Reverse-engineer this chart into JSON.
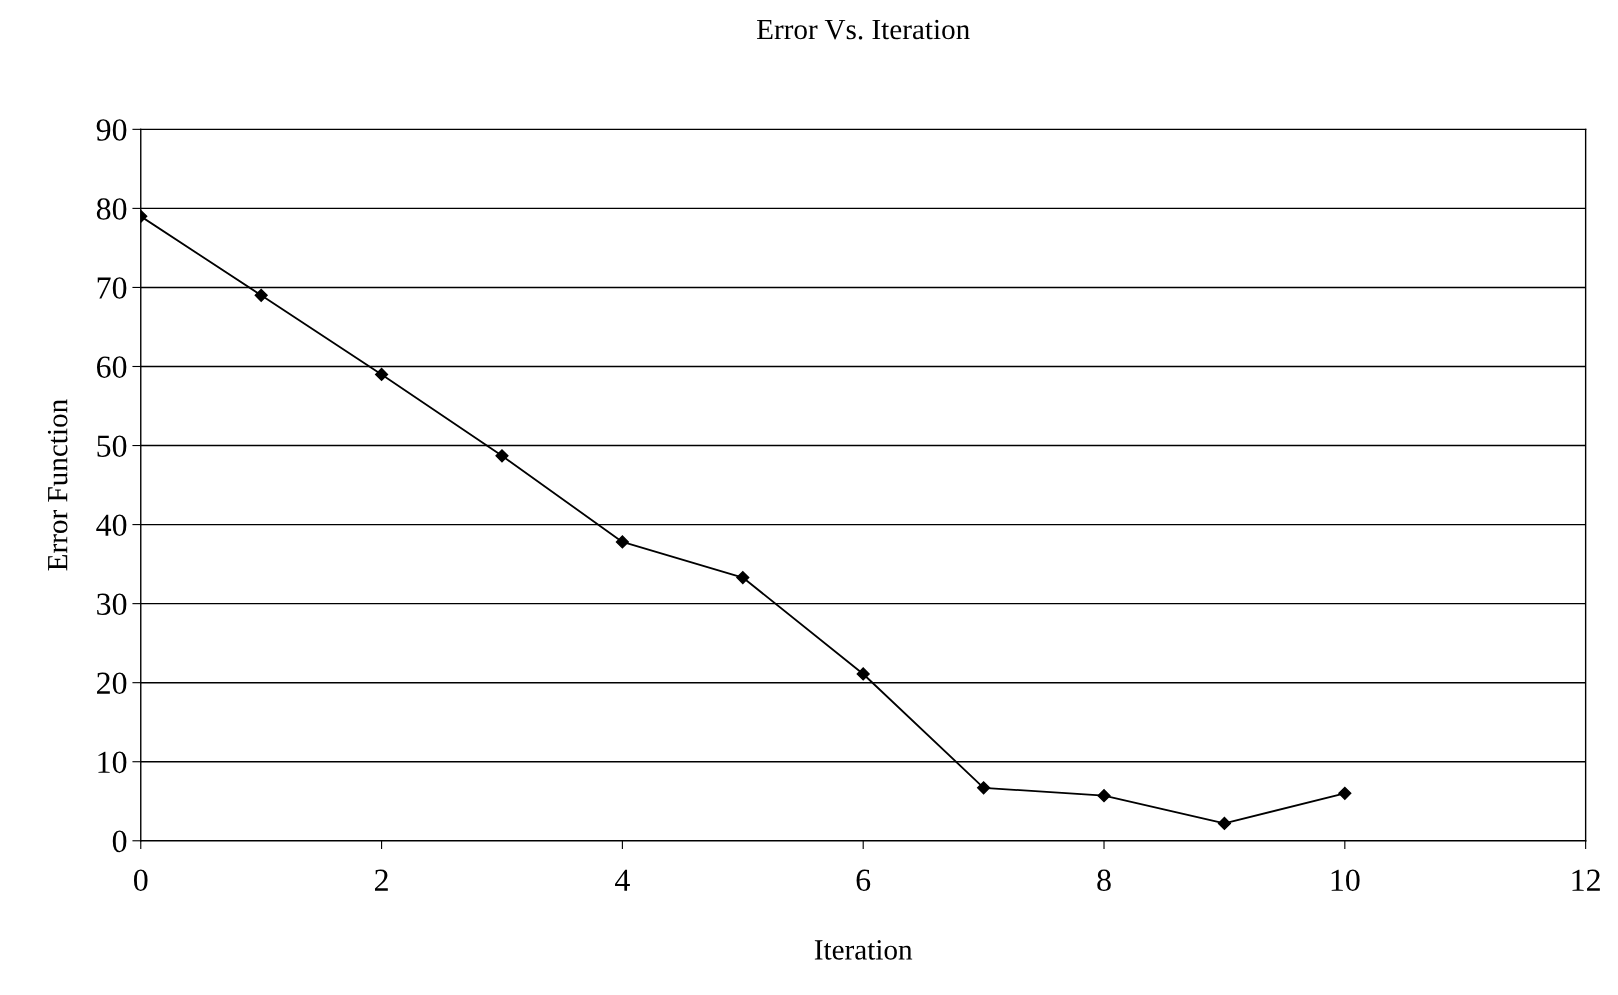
{
  "chart_data": {
    "type": "line",
    "title": "Error Vs. Iteration",
    "xlabel": "Iteration",
    "ylabel": "Error Function",
    "x": [
      0,
      1,
      2,
      3,
      4,
      5,
      6,
      7,
      8,
      9,
      10
    ],
    "series": [
      {
        "color": "#000000",
        "values": [
          79,
          69,
          59,
          48.7,
          37.8,
          33.3,
          21.1,
          6.7,
          5.7,
          2.2,
          6.0
        ]
      }
    ],
    "xlim": [
      0,
      12
    ],
    "xticks": [
      0,
      2,
      4,
      6,
      8,
      10,
      12
    ],
    "ylim": [
      0,
      90
    ],
    "yticks": [
      0,
      10,
      20,
      30,
      40,
      50,
      60,
      70,
      80,
      90
    ],
    "grid": "y",
    "marker": "diamond",
    "line_style": "solid"
  }
}
